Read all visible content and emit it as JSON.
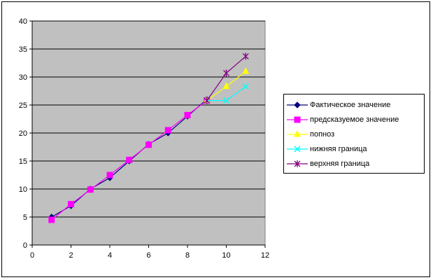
{
  "chart_data": {
    "type": "line",
    "title": "",
    "xlabel": "",
    "ylabel": "",
    "xlim": [
      0,
      12
    ],
    "ylim": [
      0,
      40
    ],
    "x_ticks": [
      0,
      2,
      4,
      6,
      8,
      10,
      12
    ],
    "y_ticks": [
      0,
      5,
      10,
      15,
      20,
      25,
      30,
      35,
      40
    ],
    "grid": "horizontal",
    "plot_background": "#c0c0c0",
    "legend_position": "right",
    "series": [
      {
        "name": "Фактическое значение",
        "color": "#000080",
        "marker": "diamond",
        "x": [
          1,
          2,
          3,
          4,
          5,
          6,
          7,
          8,
          9
        ],
        "y": [
          5,
          7,
          10,
          12,
          15,
          18,
          20,
          23,
          26
        ]
      },
      {
        "name": "предсказуемое значение",
        "color": "#ff00ff",
        "marker": "square",
        "x": [
          1,
          2,
          3,
          4,
          5,
          6,
          7,
          8,
          9
        ],
        "y": [
          4.5,
          7.3,
          9.9,
          12.5,
          15.2,
          17.9,
          20.5,
          23.2,
          25.8
        ]
      },
      {
        "name": "попноз",
        "color": "#ffff00",
        "marker": "triangle",
        "x": [
          9,
          10,
          11
        ],
        "y": [
          25.8,
          28.3,
          31
        ]
      },
      {
        "name": "нижняя граница",
        "color": "#00ffff",
        "marker": "x",
        "x": [
          9,
          10,
          11
        ],
        "y": [
          25.8,
          25.8,
          28.3
        ]
      },
      {
        "name": "верхняя граница",
        "color": "#800080",
        "marker": "star",
        "x": [
          9,
          10,
          11
        ],
        "y": [
          25.8,
          30.7,
          33.7
        ]
      }
    ]
  }
}
